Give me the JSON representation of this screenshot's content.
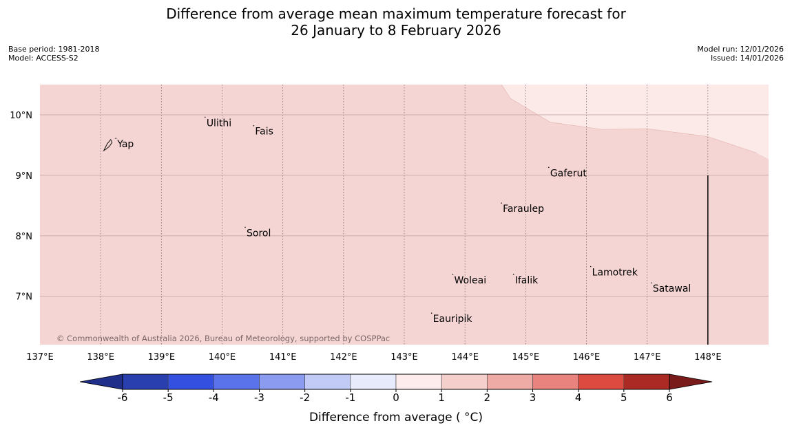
{
  "title": {
    "line1": "Difference from average mean maximum temperature forecast for",
    "line2": "26 January to 8 February 2026"
  },
  "meta_left": {
    "base_period": "Base period: 1981-2018",
    "model": "Model: ACCESS-S2"
  },
  "meta_right": {
    "model_run": "Model run: 12/01/2026",
    "issued": "Issued: 14/01/2026"
  },
  "map": {
    "lon_range": [
      137,
      149
    ],
    "lat_range": [
      6.2,
      10.5
    ],
    "lon_ticks": [
      137,
      138,
      139,
      140,
      141,
      142,
      143,
      144,
      145,
      146,
      147,
      148
    ],
    "lon_labels": [
      "137°E",
      "138°E",
      "139°E",
      "140°E",
      "141°E",
      "142°E",
      "143°E",
      "144°E",
      "145°E",
      "146°E",
      "147°E",
      "148°E"
    ],
    "lat_ticks": [
      10,
      9,
      8,
      7
    ],
    "lat_labels": [
      "10°N",
      "9°N",
      "8°N",
      "7°N"
    ],
    "base_fill": "#f4d5d3",
    "region_fill": "#fbeae8",
    "region_boundary": [
      [
        144.6,
        10.5
      ],
      [
        144.75,
        10.27
      ],
      [
        145.4,
        9.88
      ],
      [
        146.25,
        9.76
      ],
      [
        147.0,
        9.77
      ],
      [
        148.0,
        9.64
      ],
      [
        148.8,
        9.37
      ],
      [
        149,
        9.27
      ],
      [
        149,
        10.5
      ]
    ],
    "line_segment": {
      "lon": 148,
      "lat_from": 6.2,
      "lat_to": 9.0
    },
    "copyright": "© Commonwealth of Australia 2026, Bureau of Meteorology, supported by COSPPac",
    "places": [
      {
        "name": "Yap",
        "lon": 138.25,
        "lat": 9.52
      },
      {
        "name": "Ulithi",
        "lon": 139.72,
        "lat": 9.87
      },
      {
        "name": "Fais",
        "lon": 140.52,
        "lat": 9.73
      },
      {
        "name": "Gaferut",
        "lon": 145.38,
        "lat": 9.04
      },
      {
        "name": "Faraulep",
        "lon": 144.6,
        "lat": 8.45
      },
      {
        "name": "Sorol",
        "lon": 140.38,
        "lat": 8.05
      },
      {
        "name": "Woleai",
        "lon": 143.8,
        "lat": 7.27
      },
      {
        "name": "Ifalik",
        "lon": 144.8,
        "lat": 7.27
      },
      {
        "name": "Lamotrek",
        "lon": 146.07,
        "lat": 7.4
      },
      {
        "name": "Satawal",
        "lon": 147.07,
        "lat": 7.13
      },
      {
        "name": "Eauripik",
        "lon": 143.45,
        "lat": 6.63
      }
    ]
  },
  "colorbar": {
    "title": "Difference from average ( °C)",
    "ticks": [
      "-6",
      "-5",
      "-4",
      "-3",
      "-2",
      "-1",
      "0",
      "1",
      "2",
      "3",
      "4",
      "5",
      "6"
    ],
    "under_color": "#1f2f8a",
    "over_color": "#7a1b1b",
    "colors": [
      "#2a3faf",
      "#3450e0",
      "#5a72ea",
      "#8a9bf0",
      "#c2caf6",
      "#e8ebfb",
      "#fdeceb",
      "#f4cfcc",
      "#eeaaa5",
      "#e8847d",
      "#dc4a40",
      "#ab2a24"
    ]
  }
}
